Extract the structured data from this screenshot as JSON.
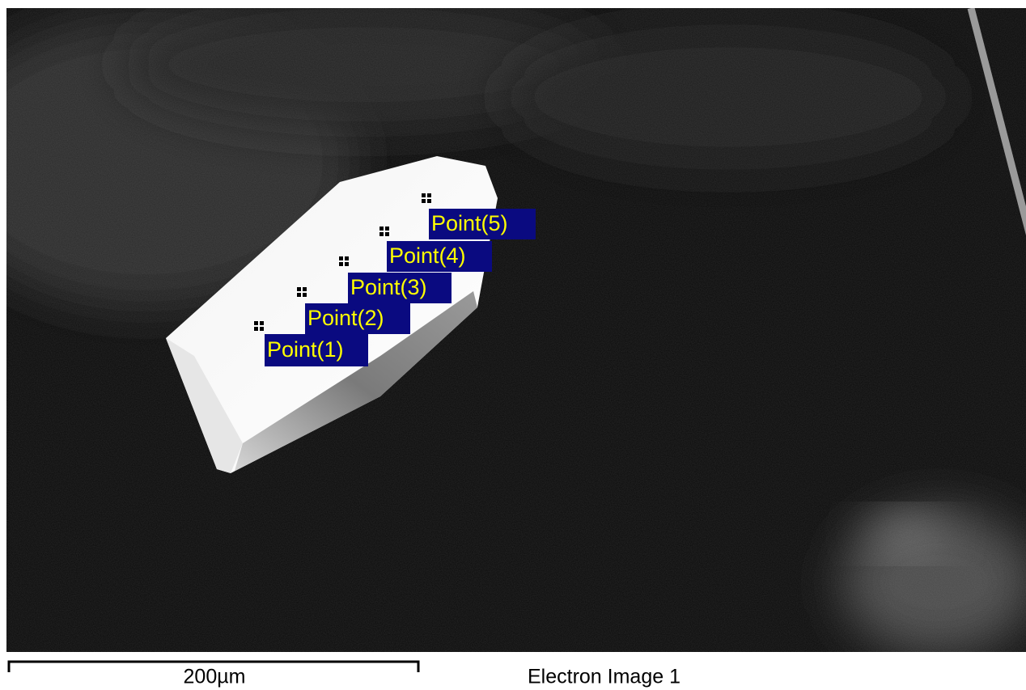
{
  "image": {
    "points": [
      {
        "label": "Point(1)"
      },
      {
        "label": "Point(2)"
      },
      {
        "label": "Point(3)"
      },
      {
        "label": "Point(4)"
      },
      {
        "label": "Point(5)"
      }
    ]
  },
  "scale_bar": {
    "label": "200µm"
  },
  "caption": "Electron Image 1"
}
